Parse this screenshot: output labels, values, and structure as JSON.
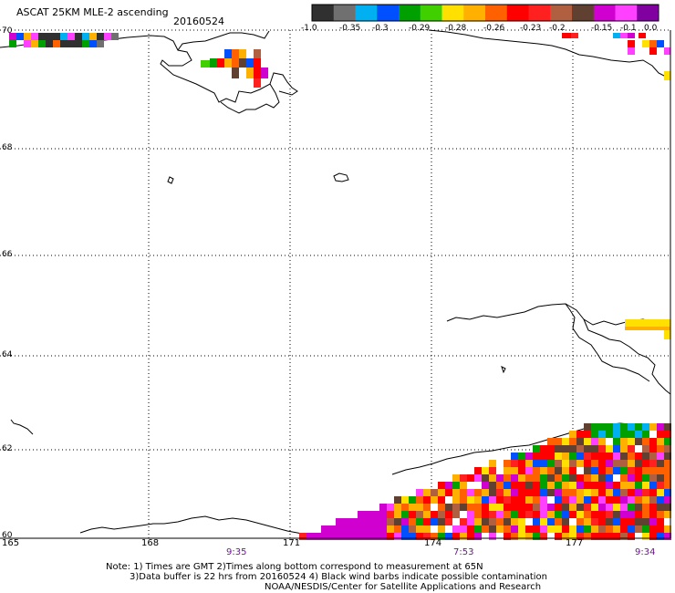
{
  "title": "ASCAT 25KM MLE-2 ascending",
  "date": "20160524",
  "colorbar": {
    "tick_labels": [
      "-1.0",
      "-0.35",
      "-0.3",
      "-0.29",
      "-0.28",
      "-0.26",
      "-0.23",
      "-0.2",
      "-0.15",
      "-0.1",
      "0.0"
    ],
    "colors": [
      "#303030",
      "#707070",
      "#00b0f0",
      "#0050ff",
      "#00a000",
      "#40d000",
      "#ffe000",
      "#ffb000",
      "#ff6000",
      "#ff0000",
      "#ff2020",
      "#b06040",
      "#604030",
      "#d000d0",
      "#ff40ff",
      "#8000a0"
    ]
  },
  "axes": {
    "lat_labels": [
      "70",
      "68",
      "66",
      "64",
      "62",
      "60"
    ],
    "lon_labels": [
      "165",
      "168",
      "171",
      "174",
      "177"
    ]
  },
  "time_labels": [
    "9:35",
    "7:53",
    "9:34"
  ],
  "notes": {
    "line1": "Note: 1) Times are GMT 2)Times along bottom correspond to measurement at 65N",
    "line2": "3)Data buffer is 22 hrs from 20160524 4) Black wind barbs indicate possible contamination",
    "line3": "NOAA/NESDIS/Center for Satellite Applications and Research"
  }
}
